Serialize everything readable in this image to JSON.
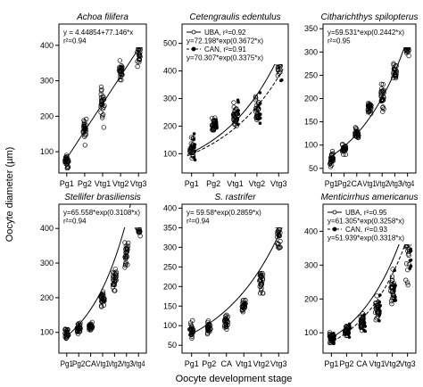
{
  "figure": {
    "ylabel": "Oocyte diameter (µm)",
    "xlabel": "Oocyte development stage"
  },
  "colors": {
    "points": "#000000",
    "fit": "#000000"
  },
  "chart_data": [
    {
      "type": "scatter",
      "title": "Achoa filifera",
      "categories": [
        "Pg1",
        "Pg2",
        "Vtg1",
        "Vtg2",
        "Vtg3"
      ],
      "ylim": [
        40,
        460
      ],
      "yticks": [
        100,
        200,
        300,
        400
      ],
      "annotation": [
        "y = 4.44854+77.146*x",
        "r²=0.94"
      ],
      "legend": [],
      "series": [
        {
          "values": [
            [
              40,
              110
            ],
            [
              110,
              205
            ],
            [
              160,
              310
            ],
            [
              300,
              360
            ],
            [
              330,
              440
            ]
          ]
        }
      ],
      "fits": [
        {
          "kind": "linear",
          "a": 4.44854,
          "b": 77.146,
          "dash": false
        }
      ]
    },
    {
      "type": "scatter",
      "title": "Cetengraulis edentulus",
      "categories": [
        "Pg1",
        "Pg2",
        "Vtg1",
        "Vtg2",
        "Vtg3"
      ],
      "ylim": [
        30,
        570
      ],
      "yticks": [
        100,
        200,
        300,
        400,
        500
      ],
      "annotation": [],
      "legend": [
        {
          "label": "UBA, r²=0.92",
          "marker": "open",
          "dash": false
        },
        {
          "text": "y=72.198*exp(0.3672*x)"
        },
        {
          "label": "CAN, r²=0.91",
          "marker": "filled",
          "dash": true
        },
        {
          "text": "y=70.307*exp(0.3375*x)"
        }
      ],
      "series": [
        {
          "values": [
            [
              50,
              180
            ],
            [
              170,
              240
            ],
            [
              160,
              310
            ],
            [
              180,
              340
            ],
            [
              330,
              560
            ]
          ]
        }
      ],
      "fits": [
        {
          "kind": "exp",
          "a": 72.198,
          "b": 0.3672,
          "dash": false
        },
        {
          "kind": "exp",
          "a": 70.307,
          "b": 0.3375,
          "dash": true
        }
      ]
    },
    {
      "type": "scatter",
      "title": "Citharichthys spilopterus",
      "categories": [
        "Pg1",
        "Pg2",
        "CA",
        "Vtg1",
        "Vtg2",
        "Vtg3",
        "Vtg4"
      ],
      "ylim": [
        40,
        360
      ],
      "yticks": [
        50,
        100,
        150,
        200,
        250,
        300,
        350
      ],
      "annotation": [
        "y=59.531*exp(0.2442*x)",
        "r²=0.95"
      ],
      "legend": [],
      "series": [
        {
          "values": [
            [
              50,
              90
            ],
            [
              75,
              110
            ],
            [
              105,
              145
            ],
            [
              160,
              200
            ],
            [
              165,
              240
            ],
            [
              230,
              290
            ],
            [
              275,
              350
            ]
          ]
        }
      ],
      "fits": [
        {
          "kind": "exp",
          "a": 59.531,
          "b": 0.2442,
          "dash": false
        }
      ]
    },
    {
      "type": "scatter",
      "title": "Stellifer brasiliensis",
      "categories": [
        "Pg1",
        "Pg2",
        "CA",
        "Vtg1",
        "Vtg2",
        "Vtg3",
        "Vtg4"
      ],
      "ylim": [
        40,
        470
      ],
      "yticks": [
        100,
        200,
        300,
        400
      ],
      "annotation": [
        "y=65.558*exp(0.3108*x)",
        "r²=0.94"
      ],
      "legend": [],
      "series": [
        {
          "values": [
            [
              65,
              120
            ],
            [
              90,
              130
            ],
            [
              100,
              135
            ],
            [
              160,
              230
            ],
            [
              210,
              300
            ],
            [
              260,
              390
            ],
            [
              350,
              460
            ]
          ]
        }
      ],
      "fits": [
        {
          "kind": "exp",
          "a": 65.558,
          "b": 0.3108,
          "dash": false
        }
      ]
    },
    {
      "type": "scatter",
      "title": "S. rastrifer",
      "categories": [
        "Pg1",
        "Pg2",
        "CA",
        "Vtg1",
        "Vtg2",
        "Vtg3"
      ],
      "ylim": [
        30,
        410
      ],
      "yticks": [
        50,
        100,
        150,
        200,
        250,
        300,
        350,
        400
      ],
      "annotation": [
        "y= 59.58*exp(0.2859*x)",
        "r²=0.94"
      ],
      "legend": [],
      "series": [
        {
          "values": [
            [
              55,
              115
            ],
            [
              70,
              120
            ],
            [
              80,
              135
            ],
            [
              125,
              185
            ],
            [
              165,
              270
            ],
            [
              270,
              395
            ]
          ]
        }
      ],
      "fits": [
        {
          "kind": "exp",
          "a": 59.58,
          "b": 0.2859,
          "dash": false
        }
      ]
    },
    {
      "type": "scatter",
      "title": "Menticirrhus americanus",
      "categories": [
        "Pg1",
        "Pg2",
        "CA",
        "Vtg1",
        "Vtg2",
        "Vtg3"
      ],
      "ylim": [
        40,
        480
      ],
      "yticks": [
        100,
        200,
        300,
        400
      ],
      "annotation": [],
      "legend": [
        {
          "label": "UBA, r²=0.95",
          "marker": "open",
          "dash": false
        },
        {
          "text": "y=61.305*exp(0.3258*x)"
        },
        {
          "label": "CAN, r²=0.93",
          "marker": "filled",
          "dash": true
        },
        {
          "text": "y=51.939*exp(0.3318*x)"
        }
      ],
      "series": [
        {
          "values": [
            [
              60,
              110
            ],
            [
              80,
              135
            ],
            [
              95,
              170
            ],
            [
              120,
              220
            ],
            [
              160,
              300
            ],
            [
              210,
              480
            ]
          ]
        }
      ],
      "fits": [
        {
          "kind": "exp",
          "a": 61.305,
          "b": 0.3258,
          "dash": false
        },
        {
          "kind": "exp",
          "a": 51.939,
          "b": 0.3318,
          "dash": true
        }
      ]
    }
  ]
}
